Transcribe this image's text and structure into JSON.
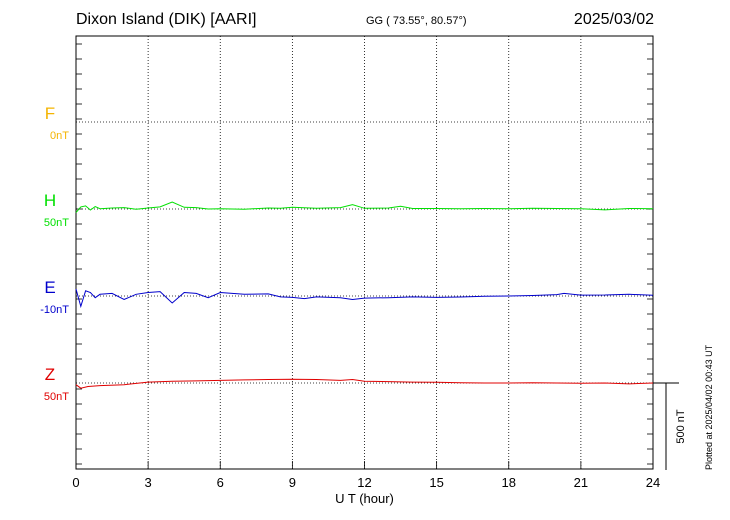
{
  "header": {
    "title": "Dixon Island (DIK)  [AARI]",
    "coords": "GG ( 73.55°,  80.57°)",
    "date": "2025/03/02",
    "plotted": "Plotted at 2025/04/02 00:43 UT"
  },
  "colors": {
    "F": "#f4b400",
    "H": "#00e000",
    "E": "#0000cc",
    "Z": "#e00000",
    "axis": "#000000"
  },
  "chart_data": {
    "type": "line",
    "title": "Dixon Island (DIK)  [AARI]",
    "xlabel": "U T (hour)",
    "xlim": [
      0,
      24
    ],
    "xticks": [
      "0",
      "3",
      "6",
      "9",
      "12",
      "15",
      "18",
      "21",
      "24"
    ],
    "grid": true,
    "scale_bar": "500 nT",
    "series": [
      {
        "name": "F",
        "baseline": "0nT",
        "x": [],
        "y": []
      },
      {
        "name": "H",
        "baseline": "50nT",
        "x": [
          0,
          0.2,
          0.4,
          0.6,
          0.8,
          1,
          1.5,
          2,
          2.5,
          3,
          3.5,
          4,
          4.5,
          5,
          5.5,
          6,
          7,
          8,
          8.5,
          9,
          10,
          11,
          11.5,
          12,
          13,
          13.5,
          14,
          15,
          16,
          17,
          18,
          19,
          20,
          21,
          22,
          23,
          24
        ],
        "y": [
          -20,
          12,
          18,
          -6,
          14,
          2,
          6,
          8,
          -2,
          6,
          12,
          40,
          10,
          8,
          0,
          2,
          -1,
          6,
          4,
          10,
          4,
          8,
          25,
          4,
          6,
          16,
          3,
          3,
          2,
          3,
          2,
          4,
          3,
          2,
          -5,
          3,
          2
        ]
      },
      {
        "name": "E",
        "baseline": "-10nT",
        "x": [
          0,
          0.2,
          0.4,
          0.6,
          0.8,
          1,
          1.5,
          2,
          2.5,
          3,
          3.5,
          4,
          4.5,
          5,
          5.5,
          6,
          7,
          8,
          8.5,
          9,
          9.5,
          10,
          11,
          11.5,
          12,
          13,
          14,
          15,
          16,
          17,
          18,
          19,
          20,
          20.3,
          21,
          22,
          23,
          24
        ],
        "y": [
          40,
          -60,
          30,
          20,
          -10,
          10,
          15,
          -20,
          10,
          20,
          25,
          -40,
          20,
          15,
          -10,
          20,
          10,
          12,
          -5,
          -8,
          -15,
          -5,
          -10,
          -20,
          -12,
          -10,
          -5,
          -8,
          -6,
          -2,
          0,
          3,
          8,
          15,
          5,
          6,
          10,
          4
        ]
      },
      {
        "name": "Z",
        "baseline": "50nT",
        "x": [
          0,
          0.2,
          0.5,
          1,
          2,
          3,
          4,
          5,
          6,
          7,
          8,
          9,
          10,
          11,
          11.5,
          12,
          13,
          14,
          15,
          16,
          17,
          18,
          19,
          20,
          21,
          22,
          23,
          24
        ],
        "y": [
          -10,
          -30,
          -20,
          -15,
          -10,
          5,
          10,
          12,
          15,
          18,
          20,
          22,
          20,
          15,
          20,
          10,
          8,
          5,
          4,
          2,
          0,
          0,
          2,
          0,
          -2,
          0,
          -5,
          0
        ]
      }
    ]
  }
}
